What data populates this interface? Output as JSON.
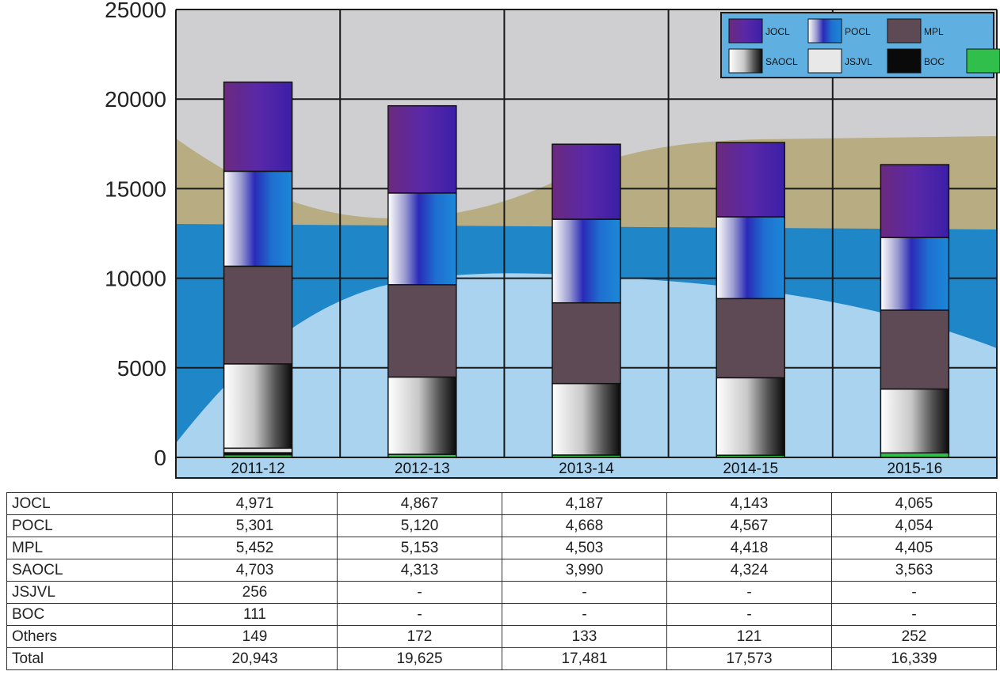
{
  "chart_data": {
    "type": "bar",
    "stacked": true,
    "categories": [
      "2011-12",
      "2012-13",
      "2013-14",
      "2014-15",
      "2015-16"
    ],
    "ylim": [
      0,
      25000
    ],
    "yticks": [
      "0",
      "5000",
      "10000",
      "15000",
      "20000",
      "25000"
    ],
    "grid": true,
    "legend_position": "top-right",
    "series": [
      {
        "name": "Others",
        "color": "#2fbf4a",
        "values": [
          149,
          172,
          133,
          121,
          252
        ]
      },
      {
        "name": "BOC",
        "color": "#0a0a0a",
        "values": [
          111,
          0,
          0,
          0,
          0
        ]
      },
      {
        "name": "JSJVL",
        "color": "#e8e8e8",
        "values": [
          256,
          0,
          0,
          0,
          0
        ]
      },
      {
        "name": "SAOCL",
        "color": "#9a9a9a",
        "values": [
          4703,
          4313,
          3990,
          4324,
          3563
        ]
      },
      {
        "name": "MPL",
        "color": "#5e4a55",
        "values": [
          5452,
          5153,
          4503,
          4418,
          4405
        ]
      },
      {
        "name": "POCL",
        "color": "#1e6fd0",
        "values": [
          5301,
          5120,
          4668,
          4567,
          4054
        ]
      },
      {
        "name": "JOCL",
        "color": "#5a28a8",
        "values": [
          4971,
          4867,
          4187,
          4143,
          4065
        ]
      }
    ],
    "legend_order": [
      "JOCL",
      "POCL",
      "MPL",
      "SAOCL",
      "JSJVL",
      "BOC",
      "Others"
    ],
    "table": {
      "rows": [
        {
          "label": "JOCL",
          "cells": [
            "4,971",
            "4,867",
            "4,187",
            "4,143",
            "4,065"
          ]
        },
        {
          "label": "POCL",
          "cells": [
            "5,301",
            "5,120",
            "4,668",
            "4,567",
            "4,054"
          ]
        },
        {
          "label": "MPL",
          "cells": [
            "5,452",
            "5,153",
            "4,503",
            "4,418",
            "4,405"
          ]
        },
        {
          "label": "SAOCL",
          "cells": [
            "4,703",
            "4,313",
            "3,990",
            "4,324",
            "3,563"
          ]
        },
        {
          "label": "JSJVL",
          "cells": [
            "256",
            "-",
            "-",
            "-",
            "-"
          ]
        },
        {
          "label": "BOC",
          "cells": [
            "111",
            "-",
            "-",
            "-",
            "-"
          ]
        },
        {
          "label": "Others",
          "cells": [
            "149",
            "172",
            "133",
            "121",
            "252"
          ]
        },
        {
          "label": "Total",
          "cells": [
            "20,943",
            "19,625",
            "17,481",
            "17,573",
            "16,339"
          ]
        }
      ]
    }
  },
  "colors": {
    "plot_background": "#cfcfd2",
    "tan_area": "#b7ac82",
    "dark_blue_area": "#1f86c8",
    "light_blue_area": "#a9d3ee",
    "category_band": "#a9d3ee",
    "legend_background": "#5fb0e0"
  }
}
